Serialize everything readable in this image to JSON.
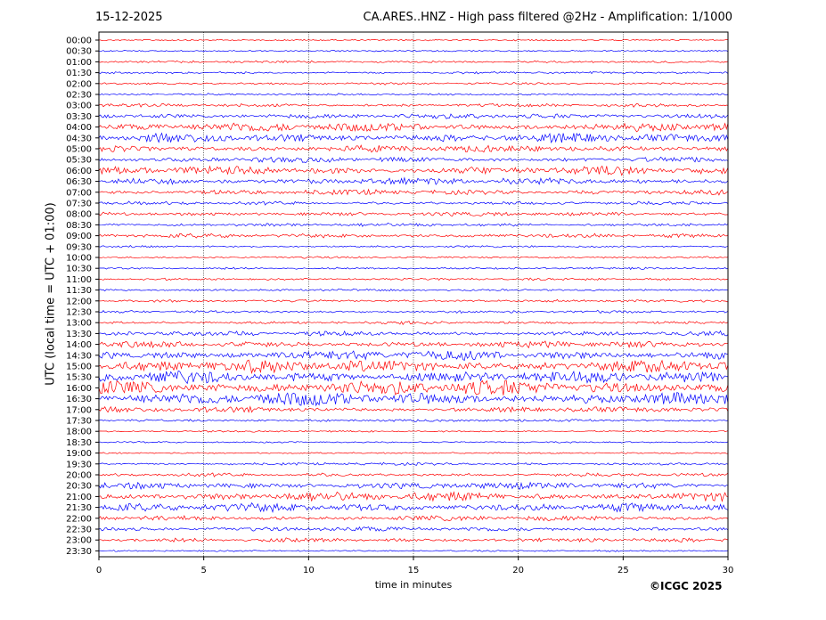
{
  "header": {
    "date": "15-12-2025",
    "title": "CA.ARES..HNZ - High pass filtered @2Hz - Amplification: 1/1000"
  },
  "footer": {
    "copyright": "©ICGC 2025"
  },
  "chart_data": {
    "type": "line",
    "title": "CA.ARES..HNZ - High pass filtered @2Hz - Amplification: 1/1000",
    "xlabel": "time in minutes",
    "ylabel": "UTC (local time = UTC + 01:00)",
    "xlim": [
      0,
      30
    ],
    "x_ticks": [
      0,
      5,
      10,
      15,
      20,
      25,
      30
    ],
    "grid": "vertical dotted lines at 5 minute intervals",
    "colors": {
      "even_rows": "#ff0000",
      "odd_rows": "#0000ff"
    },
    "rows": [
      {
        "label": "00:00",
        "activity": 0.05
      },
      {
        "label": "00:30",
        "activity": 0.05
      },
      {
        "label": "01:00",
        "activity": 0.12
      },
      {
        "label": "01:30",
        "activity": 0.12
      },
      {
        "label": "02:00",
        "activity": 0.12
      },
      {
        "label": "02:30",
        "activity": 0.1
      },
      {
        "label": "03:00",
        "activity": 0.2
      },
      {
        "label": "03:30",
        "activity": 0.35
      },
      {
        "label": "04:00",
        "activity": 0.6
      },
      {
        "label": "04:30",
        "activity": 0.6
      },
      {
        "label": "05:00",
        "activity": 0.45
      },
      {
        "label": "05:30",
        "activity": 0.35
      },
      {
        "label": "06:00",
        "activity": 0.55
      },
      {
        "label": "06:30",
        "activity": 0.45
      },
      {
        "label": "07:00",
        "activity": 0.35
      },
      {
        "label": "07:30",
        "activity": 0.2
      },
      {
        "label": "08:00",
        "activity": 0.25
      },
      {
        "label": "08:30",
        "activity": 0.2
      },
      {
        "label": "09:00",
        "activity": 0.25
      },
      {
        "label": "09:30",
        "activity": 0.1
      },
      {
        "label": "10:00",
        "activity": 0.1
      },
      {
        "label": "10:30",
        "activity": 0.1
      },
      {
        "label": "11:00",
        "activity": 0.12
      },
      {
        "label": "11:30",
        "activity": 0.12
      },
      {
        "label": "12:00",
        "activity": 0.15
      },
      {
        "label": "12:30",
        "activity": 0.15
      },
      {
        "label": "13:00",
        "activity": 0.18
      },
      {
        "label": "13:30",
        "activity": 0.3
      },
      {
        "label": "14:00",
        "activity": 0.4
      },
      {
        "label": "14:30",
        "activity": 0.65
      },
      {
        "label": "15:00",
        "activity": 0.85
      },
      {
        "label": "15:30",
        "activity": 0.8
      },
      {
        "label": "16:00",
        "activity": 1.0
      },
      {
        "label": "16:30",
        "activity": 0.9
      },
      {
        "label": "17:00",
        "activity": 0.35
      },
      {
        "label": "17:30",
        "activity": 0.15
      },
      {
        "label": "18:00",
        "activity": 0.08
      },
      {
        "label": "18:30",
        "activity": 0.05
      },
      {
        "label": "19:00",
        "activity": 0.05
      },
      {
        "label": "19:30",
        "activity": 0.15
      },
      {
        "label": "20:00",
        "activity": 0.2
      },
      {
        "label": "20:30",
        "activity": 0.45
      },
      {
        "label": "21:00",
        "activity": 0.6
      },
      {
        "label": "21:30",
        "activity": 0.55
      },
      {
        "label": "22:00",
        "activity": 0.35
      },
      {
        "label": "22:30",
        "activity": 0.3
      },
      {
        "label": "23:00",
        "activity": 0.25
      },
      {
        "label": "23:30",
        "activity": 0.05
      }
    ]
  }
}
